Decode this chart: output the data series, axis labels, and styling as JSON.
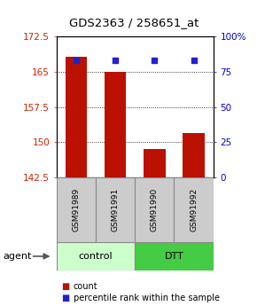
{
  "title": "GDS2363 / 258651_at",
  "samples": [
    "GSM91989",
    "GSM91991",
    "GSM91990",
    "GSM91992"
  ],
  "bar_values": [
    168.2,
    165.0,
    148.5,
    152.0
  ],
  "percentile_values": [
    83,
    83,
    83,
    83
  ],
  "ylim_left": [
    142.5,
    172.5
  ],
  "ylim_right": [
    0,
    100
  ],
  "yticks_left": [
    142.5,
    150.0,
    157.5,
    165.0,
    172.5
  ],
  "ytick_labels_left": [
    "142.5",
    "150",
    "157.5",
    "165",
    "172.5"
  ],
  "yticks_right": [
    0,
    25,
    50,
    75,
    100
  ],
  "ytick_labels_right": [
    "0",
    "25",
    "50",
    "75",
    "100%"
  ],
  "bar_color": "#bb1100",
  "dot_color": "#2222cc",
  "bar_bottom": 142.5,
  "bar_width": 0.55,
  "groups": [
    {
      "label": "control",
      "indices": [
        0,
        1
      ],
      "color": "#ccffcc"
    },
    {
      "label": "DTT",
      "indices": [
        2,
        3
      ],
      "color": "#44cc44"
    }
  ],
  "agent_label": "agent",
  "legend_items": [
    {
      "label": "count",
      "color": "#bb1100"
    },
    {
      "label": "percentile rank within the sample",
      "color": "#2222cc"
    }
  ],
  "sample_box_color": "#cccccc",
  "sample_box_edge": "#888888"
}
